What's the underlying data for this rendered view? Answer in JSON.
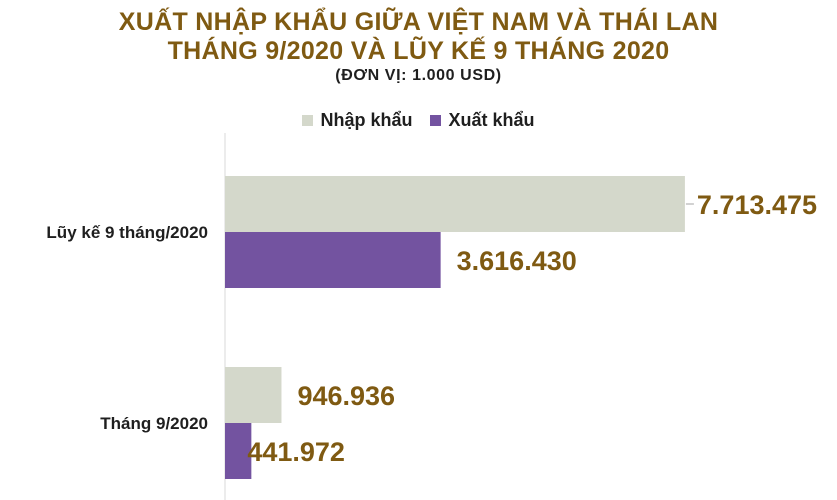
{
  "chart_data": {
    "type": "bar",
    "orientation": "horizontal",
    "title_lines": [
      "XUẤT NHẬP KHẨU GIỮA VIỆT NAM VÀ THÁI LAN",
      "THÁNG 9/2020 VÀ LŨY KẾ 9 THÁNG 2020"
    ],
    "subtitle": "(ĐƠN VỊ: 1.000 USD)",
    "categories": [
      "Lũy kế 9 tháng/2020",
      "Tháng 9/2020"
    ],
    "series": [
      {
        "name": "Nhập khẩu",
        "color": "#d4d8cb",
        "values": [
          7713475,
          946936
        ],
        "labels": [
          "7.713.475",
          "946.936"
        ]
      },
      {
        "name": "Xuất khẩu",
        "color": "#7353a0",
        "values": [
          3616430,
          441972
        ],
        "labels": [
          "3.616.430",
          "441.972"
        ]
      }
    ],
    "xlim": [
      0,
      8000000
    ],
    "grid": false,
    "legend_position": "top"
  }
}
